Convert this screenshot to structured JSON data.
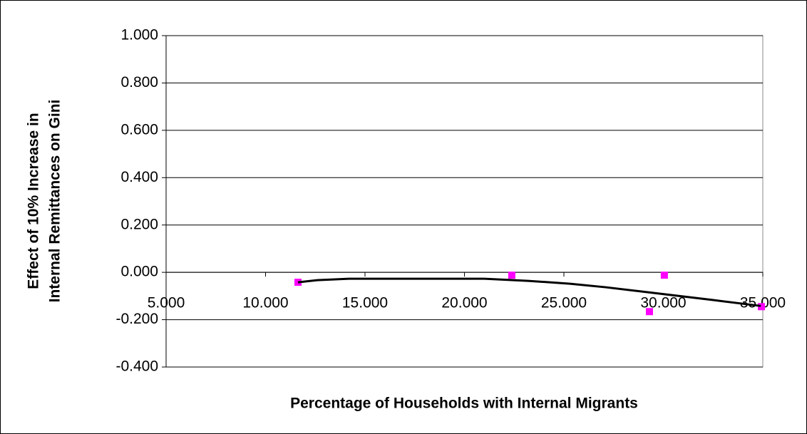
{
  "chart_data": {
    "type": "scatter",
    "y_label": [
      "Effect of 10% Increase in",
      "Internal Remittances on Gini"
    ],
    "x_label": "Percentage of Households with Internal Migrants",
    "xlim": [
      5,
      35
    ],
    "xticks": [
      {
        "value": 5,
        "label": "5.000"
      },
      {
        "value": 10,
        "label": "10.000"
      },
      {
        "value": 15,
        "label": "15.000"
      },
      {
        "value": 20,
        "label": "20.000"
      },
      {
        "value": 25,
        "label": "25.000"
      },
      {
        "value": 30,
        "label": "30.000"
      },
      {
        "value": 35,
        "label": "35.000"
      }
    ],
    "ylim": [
      -0.4,
      1
    ],
    "yticks": [
      {
        "value": -0.4,
        "label": "-0.400"
      },
      {
        "value": -0.2,
        "label": "-0.200"
      },
      {
        "value": 0,
        "label": "0.000"
      },
      {
        "value": 0.2,
        "label": "0.200"
      },
      {
        "value": 0.4,
        "label": "0.400"
      },
      {
        "value": 0.6,
        "label": "0.600"
      },
      {
        "value": 0.8,
        "label": "0.800"
      },
      {
        "value": 1,
        "label": "1.000"
      }
    ],
    "grid": true,
    "series": [
      {
        "style": "markers",
        "color": "#ff00ff",
        "x": [
          11.63,
          22.38,
          29.3,
          30.05,
          34.93
        ],
        "values": [
          -0.042,
          -0.012,
          -0.166,
          -0.012,
          -0.145
        ]
      },
      {
        "style": "line",
        "color": "#000000",
        "x": [
          11.63,
          12.6,
          14.2,
          21.0,
          23.2,
          25.3,
          27.1,
          28.9,
          30.7,
          32.5,
          34.9
        ],
        "values": [
          -0.042,
          -0.033,
          -0.027,
          -0.027,
          -0.036,
          -0.048,
          -0.063,
          -0.081,
          -0.099,
          -0.117,
          -0.142
        ]
      }
    ]
  }
}
